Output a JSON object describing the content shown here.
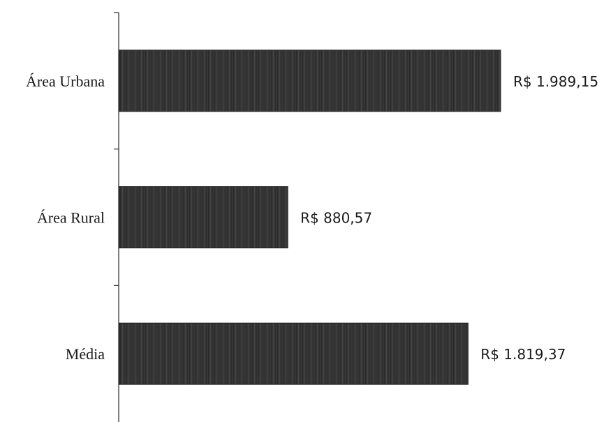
{
  "chart_data": {
    "type": "bar",
    "orientation": "horizontal",
    "categories": [
      "Área Urbana",
      "Área Rural",
      "Média"
    ],
    "values": [
      1989.15,
      880.57,
      1819.37
    ],
    "data_labels": [
      "R$ 1.989,15",
      "R$ 880,57",
      "R$ 1.819,37"
    ],
    "title": "",
    "xlabel": "",
    "ylabel": "",
    "xlim": [
      0,
      2000
    ],
    "grid": false,
    "legend": "none",
    "bar_color": "#333333"
  }
}
